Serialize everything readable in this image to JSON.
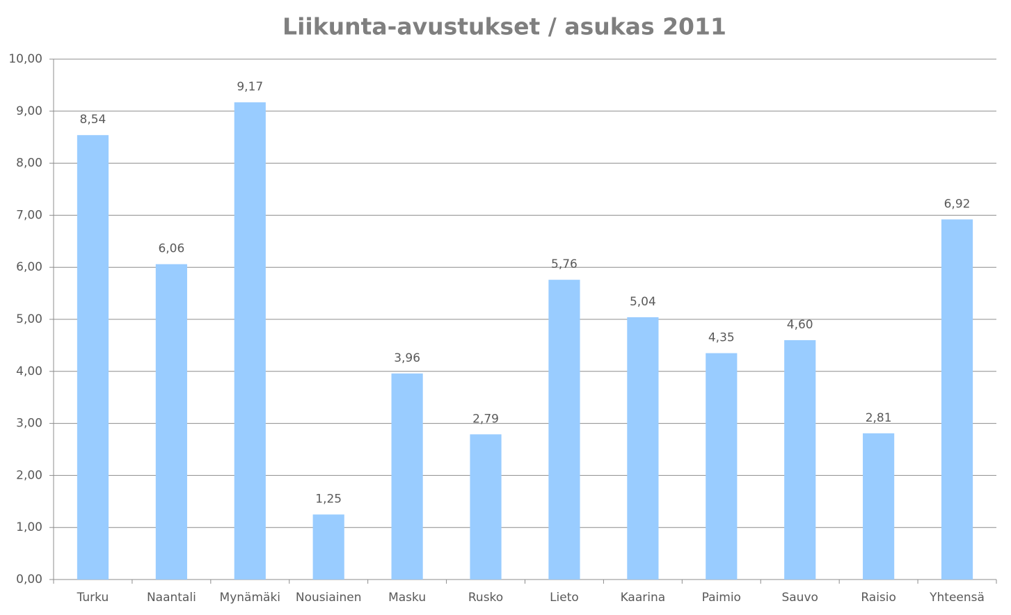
{
  "chart_data": {
    "type": "bar",
    "title": "Liikunta-avustukset / asukas 2011",
    "categories": [
      "Turku",
      "Naantali",
      "Mynämäki",
      "Nousiainen",
      "Masku",
      "Rusko",
      "Lieto",
      "Kaarina",
      "Paimio",
      "Sauvo",
      "Raisio",
      "Yhteensä"
    ],
    "values": [
      8.54,
      6.06,
      9.17,
      1.25,
      3.96,
      2.79,
      5.76,
      5.04,
      4.35,
      4.6,
      2.81,
      6.92
    ],
    "value_labels": [
      "8,54",
      "6,06",
      "9,17",
      "1,25",
      "3,96",
      "2,79",
      "5,76",
      "5,04",
      "4,35",
      "4,60",
      "2,81",
      "6,92"
    ],
    "color": "#99ccff",
    "ylim": [
      0,
      10
    ],
    "yticks": [
      {
        "value": 0,
        "label": "0,00"
      },
      {
        "value": 1,
        "label": "1,00"
      },
      {
        "value": 2,
        "label": "2,00"
      },
      {
        "value": 3,
        "label": "3,00"
      },
      {
        "value": 4,
        "label": "4,00"
      },
      {
        "value": 5,
        "label": "5,00"
      },
      {
        "value": 6,
        "label": "6,00"
      },
      {
        "value": 7,
        "label": "7,00"
      },
      {
        "value": 8,
        "label": "8,00"
      },
      {
        "value": 9,
        "label": "9,00"
      },
      {
        "value": 10,
        "label": "10,00"
      }
    ],
    "grid": true
  }
}
